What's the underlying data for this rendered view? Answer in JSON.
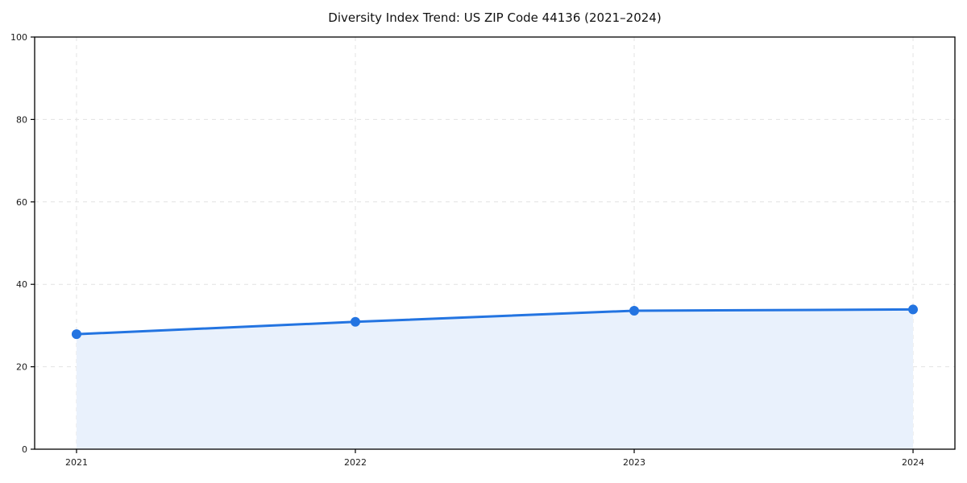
{
  "chart_data": {
    "type": "line",
    "title": "Diversity Index Trend: US ZIP Code 44136 (2021–2024)",
    "x": [
      "2021",
      "2022",
      "2023",
      "2024"
    ],
    "series": [
      {
        "name": "Diversity Index",
        "values": [
          27.9,
          30.9,
          33.6,
          33.9
        ]
      }
    ],
    "xlabel": "",
    "ylabel": "",
    "ylim": [
      0,
      100
    ],
    "yticks": [
      0,
      20,
      40,
      60,
      80,
      100
    ],
    "grid": true,
    "grid_style": "dashed",
    "legend_position": "none",
    "area_fill": true,
    "colors": {
      "line": "#2374e1",
      "marker": "#2374e1",
      "area": "#e9f1fc",
      "grid": "#e2e2e2",
      "spine": "#000000",
      "tick_label": "#1a1a1a",
      "title": "#111111",
      "background": "#ffffff"
    }
  }
}
